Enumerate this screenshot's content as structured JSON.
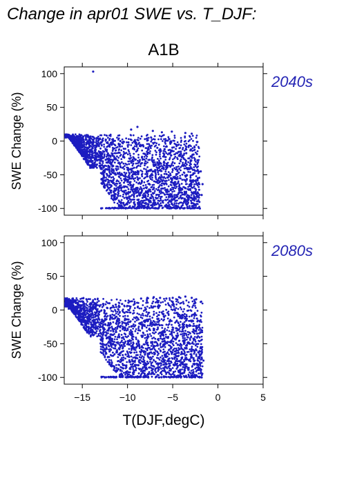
{
  "figure": {
    "title": "Change in apr01 SWE vs. T_DJF:",
    "scenario": "A1B",
    "xlabel": "T(DJF,degC)",
    "ylabel": "SWE Change (%)"
  },
  "colors": {
    "points": "#1c1cc0",
    "panel_label": "#2424b4",
    "axis": "#000000",
    "background": "#ffffff"
  },
  "chart_data": [
    {
      "type": "scatter",
      "panel_label": "2040s",
      "xlabel": "T(DJF,degC)",
      "ylabel": "SWE Change (%)",
      "xlim": [
        -17,
        5
      ],
      "ylim": [
        -110,
        110
      ],
      "xticks": [
        -15,
        -10,
        -5,
        0,
        5
      ],
      "yticks": [
        100,
        50,
        0,
        -50,
        -100
      ],
      "grid": false,
      "point_density_description": "dense cloud; upper envelope near +10, floor at -100 for T between -13 and -2",
      "points": [
        [
          -13.8,
          103
        ],
        [
          -8.9,
          21
        ],
        [
          -9.6,
          17
        ],
        [
          -7.2,
          15
        ],
        [
          -6.2,
          13
        ],
        [
          -5.1,
          14
        ],
        [
          -3.6,
          12
        ],
        [
          -2.9,
          11
        ],
        [
          -16.9,
          6
        ],
        [
          -16.0,
          5
        ],
        [
          -15.2,
          6
        ],
        [
          -14.1,
          4
        ],
        [
          -13.2,
          3
        ],
        [
          -12.4,
          2
        ],
        [
          -11.6,
          1
        ],
        [
          -10.8,
          0
        ],
        [
          -9.9,
          -2
        ],
        [
          -9.1,
          -4
        ],
        [
          -8.3,
          -6
        ],
        [
          -7.5,
          -8
        ],
        [
          -6.7,
          -10
        ],
        [
          -5.9,
          -12
        ],
        [
          -5.1,
          -14
        ],
        [
          -4.3,
          -16
        ],
        [
          -3.5,
          -18
        ],
        [
          -2.7,
          -20
        ],
        [
          -1.9,
          -45
        ],
        [
          -1.7,
          -64
        ],
        [
          -1.8,
          -80
        ],
        [
          -15.5,
          -2
        ],
        [
          -14.8,
          -5
        ],
        [
          -14.2,
          -9
        ],
        [
          -13.6,
          -14
        ],
        [
          -13.0,
          -20
        ],
        [
          -12.4,
          -28
        ],
        [
          -11.8,
          -35
        ],
        [
          -11.2,
          -42
        ],
        [
          -10.6,
          -50
        ],
        [
          -10.0,
          -58
        ],
        [
          -9.4,
          -66
        ],
        [
          -8.8,
          -74
        ],
        [
          -8.2,
          -82
        ],
        [
          -7.6,
          -90
        ],
        [
          -7.0,
          -95
        ],
        [
          -12.9,
          -100
        ],
        [
          -11.5,
          -100
        ],
        [
          -10.2,
          -100
        ],
        [
          -9.0,
          -100
        ],
        [
          -7.8,
          -100
        ],
        [
          -6.6,
          -100
        ],
        [
          -5.4,
          -100
        ],
        [
          -4.2,
          -100
        ],
        [
          -3.0,
          -100
        ],
        [
          -2.0,
          -100
        ],
        [
          -6.0,
          -40
        ],
        [
          -5.2,
          -55
        ],
        [
          -4.4,
          -62
        ],
        [
          -3.6,
          -70
        ],
        [
          -2.8,
          -77
        ],
        [
          -8.0,
          -30
        ],
        [
          -7.2,
          -45
        ],
        [
          -6.4,
          -60
        ],
        [
          -5.6,
          -72
        ],
        [
          -4.8,
          -85
        ],
        [
          -12.1,
          -70
        ],
        [
          -11.4,
          -82
        ],
        [
          -10.9,
          -90
        ],
        [
          -12.7,
          -55
        ]
      ]
    },
    {
      "type": "scatter",
      "panel_label": "2080s",
      "xlabel": "T(DJF,degC)",
      "ylabel": "SWE Change (%)",
      "xlim": [
        -17,
        5
      ],
      "ylim": [
        -110,
        110
      ],
      "xticks": [
        -15,
        -10,
        -5,
        0,
        5
      ],
      "yticks": [
        100,
        50,
        0,
        -50,
        -100
      ],
      "grid": false,
      "point_density_description": "dense cloud; upper envelope near +18, floor at -100 for T between -12.5 and -1.5",
      "points": [
        [
          -16.9,
          10
        ],
        [
          -16.2,
          9
        ],
        [
          -15.5,
          11
        ],
        [
          -14.8,
          9
        ],
        [
          -14.1,
          10
        ],
        [
          -13.4,
          8
        ],
        [
          -12.7,
          9
        ],
        [
          -12.0,
          10
        ],
        [
          -11.3,
          8
        ],
        [
          -10.6,
          9
        ],
        [
          -9.9,
          11
        ],
        [
          -9.2,
          10
        ],
        [
          -8.5,
          17
        ],
        [
          -7.8,
          18
        ],
        [
          -7.1,
          19
        ],
        [
          -6.4,
          18
        ],
        [
          -5.7,
          17
        ],
        [
          -5.0,
          18
        ],
        [
          -4.3,
          19
        ],
        [
          -3.6,
          20
        ],
        [
          -2.9,
          18
        ],
        [
          -2.4,
          16
        ],
        [
          -1.9,
          12
        ],
        [
          -16.5,
          2
        ],
        [
          -15.8,
          -4
        ],
        [
          -15.1,
          -10
        ],
        [
          -14.4,
          -18
        ],
        [
          -13.7,
          -26
        ],
        [
          -13.0,
          -34
        ],
        [
          -12.3,
          -42
        ],
        [
          -11.6,
          -50
        ],
        [
          -10.9,
          -58
        ],
        [
          -10.2,
          -66
        ],
        [
          -9.5,
          -74
        ],
        [
          -8.8,
          -82
        ],
        [
          -8.1,
          -90
        ],
        [
          -7.4,
          -95
        ],
        [
          -12.5,
          -100
        ],
        [
          -11.3,
          -100
        ],
        [
          -10.1,
          -100
        ],
        [
          -8.9,
          -100
        ],
        [
          -7.7,
          -100
        ],
        [
          -6.5,
          -100
        ],
        [
          -5.3,
          -100
        ],
        [
          -4.1,
          -100
        ],
        [
          -2.9,
          -100
        ],
        [
          -1.8,
          -100
        ],
        [
          -1.6,
          -75
        ],
        [
          -1.9,
          -55
        ],
        [
          -2.3,
          -35
        ],
        [
          -3.1,
          -50
        ],
        [
          -3.9,
          -65
        ],
        [
          -4.7,
          -80
        ],
        [
          -5.5,
          -40
        ],
        [
          -6.3,
          -55
        ],
        [
          -7.1,
          -30
        ],
        [
          -7.9,
          -45
        ],
        [
          -8.7,
          -20
        ],
        [
          -9.5,
          -35
        ],
        [
          -10.3,
          -15
        ],
        [
          -11.1,
          -25
        ],
        [
          -11.9,
          -8
        ]
      ]
    }
  ]
}
